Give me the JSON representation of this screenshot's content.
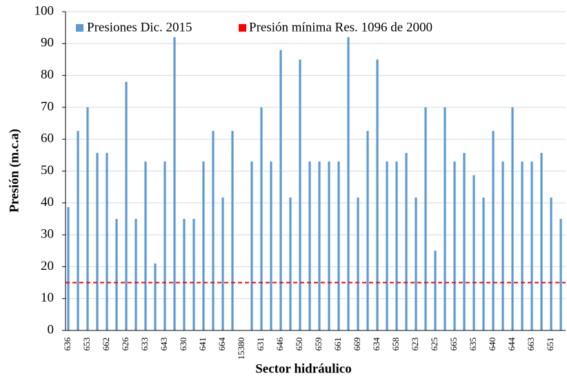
{
  "chart_data": {
    "type": "bar",
    "x_label": "Sector hidráulico",
    "y_label": "Presión (m.c.a)",
    "categories": [
      "636",
      null,
      "653",
      null,
      "662",
      null,
      "626",
      null,
      "633",
      null,
      "643",
      null,
      "630",
      null,
      "641",
      null,
      "664",
      null,
      "15380",
      null,
      "631",
      null,
      "646",
      null,
      "650",
      null,
      "659",
      null,
      "661",
      null,
      "669",
      null,
      "634",
      null,
      "658",
      null,
      "623",
      null,
      "625",
      null,
      "665",
      null,
      "635",
      null,
      "640",
      null,
      "644",
      null,
      "663",
      null,
      "651",
      null
    ],
    "series": [
      {
        "name": "Presiones Dic. 2015",
        "color": "#5b9bd5",
        "values": [
          38.7,
          62.6,
          70,
          55.7,
          55.7,
          35,
          78,
          35,
          53,
          21,
          53,
          92,
          35,
          35,
          53,
          62.6,
          41.7,
          62.6,
          null,
          53,
          70,
          53,
          88,
          41.7,
          85,
          53,
          53,
          53,
          53,
          92,
          41.7,
          62.6,
          85,
          53,
          53,
          55.7,
          41.7,
          70,
          25,
          70,
          53,
          55.7,
          48.7,
          41.7,
          62.6,
          53,
          70,
          53,
          53,
          55.7,
          41.7,
          35
        ]
      }
    ],
    "reference_line": {
      "name": "Presión mínima Res. 1096 de 2000",
      "value": 15,
      "color": "#ff0000"
    },
    "ylim": [
      0,
      100
    ],
    "yticks": [
      0,
      10,
      20,
      30,
      40,
      50,
      60,
      70,
      80,
      90,
      100
    ],
    "grid": true
  }
}
